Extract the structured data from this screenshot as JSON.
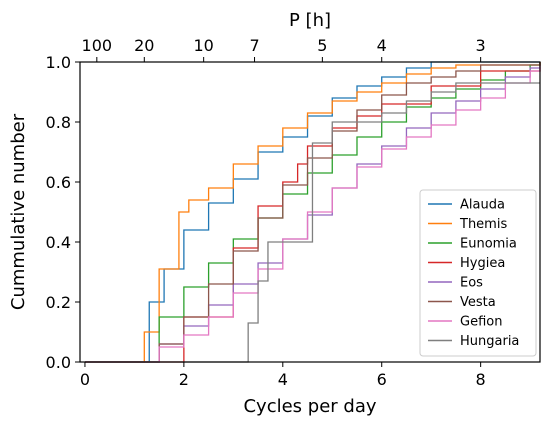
{
  "chart_data": {
    "type": "line",
    "step": true,
    "xlabel": "Cycles per day",
    "ylabel": "Cummulative number",
    "x2label": "P [h]",
    "xlim": [
      -0.1,
      9.2
    ],
    "ylim": [
      0.0,
      1.0
    ],
    "xticks": [
      0,
      2,
      4,
      6,
      8
    ],
    "xtick_labels": [
      "0",
      "2",
      "4",
      "6",
      "8"
    ],
    "yticks": [
      0.0,
      0.2,
      0.4,
      0.6,
      0.8,
      1.0
    ],
    "ytick_labels": [
      "0.0",
      "0.2",
      "0.4",
      "0.6",
      "0.8",
      "1.0"
    ],
    "top_axis": {
      "label": "P [h]",
      "ticks_hours": [
        100,
        20,
        10,
        7,
        5,
        4,
        3
      ],
      "tick_labels": [
        "100",
        "20",
        "10",
        "7",
        "5",
        "4",
        "3"
      ]
    },
    "grid": false,
    "legend": {
      "position": "lower-right",
      "entries": [
        "Alauda",
        "Themis",
        "Eunomia",
        "Hygiea",
        "Eos",
        "Vesta",
        "Gefion",
        "Hungaria"
      ]
    },
    "series": [
      {
        "name": "Alauda",
        "color": "#1f77b4",
        "x": [
          0.0,
          1.0,
          1.3,
          1.6,
          2.0,
          2.5,
          3.0,
          3.5,
          4.0,
          4.5,
          5.0,
          5.5,
          6.0,
          6.5,
          7.0,
          9.2
        ],
        "y": [
          0.0,
          0.0,
          0.2,
          0.31,
          0.44,
          0.53,
          0.61,
          0.7,
          0.75,
          0.82,
          0.88,
          0.92,
          0.95,
          0.98,
          1.0,
          1.0
        ]
      },
      {
        "name": "Themis",
        "color": "#ff7f0e",
        "x": [
          0.0,
          1.0,
          1.2,
          1.5,
          1.9,
          2.1,
          2.5,
          3.0,
          3.5,
          4.0,
          4.5,
          5.0,
          5.5,
          6.0,
          6.5,
          7.0,
          7.5,
          9.2
        ],
        "y": [
          0.0,
          0.0,
          0.1,
          0.31,
          0.5,
          0.54,
          0.58,
          0.66,
          0.72,
          0.78,
          0.83,
          0.87,
          0.9,
          0.93,
          0.96,
          0.98,
          0.99,
          1.0
        ]
      },
      {
        "name": "Eunomia",
        "color": "#2ca02c",
        "x": [
          0.0,
          1.0,
          1.5,
          2.0,
          2.5,
          3.0,
          3.5,
          4.0,
          4.5,
          5.0,
          5.5,
          6.0,
          6.5,
          7.0,
          7.5,
          8.0,
          8.5,
          9.0,
          9.2
        ],
        "y": [
          0.0,
          0.0,
          0.15,
          0.25,
          0.33,
          0.41,
          0.48,
          0.56,
          0.63,
          0.69,
          0.75,
          0.8,
          0.85,
          0.88,
          0.91,
          0.94,
          0.97,
          0.99,
          1.0
        ]
      },
      {
        "name": "Hygiea",
        "color": "#d62728",
        "x": [
          0.0,
          1.2,
          2.0,
          3.0,
          3.5,
          4.0,
          4.3,
          4.5,
          5.0,
          5.5,
          6.0,
          7.0,
          8.0,
          9.2
        ],
        "y": [
          0.0,
          0.0,
          0.15,
          0.38,
          0.52,
          0.6,
          0.66,
          0.72,
          0.78,
          0.82,
          0.86,
          0.92,
          0.97,
          1.0
        ]
      },
      {
        "name": "Eos",
        "color": "#9467bd",
        "x": [
          0.0,
          1.0,
          1.5,
          2.0,
          2.5,
          3.0,
          3.5,
          4.0,
          4.5,
          5.0,
          5.5,
          6.0,
          6.5,
          7.0,
          7.5,
          8.0,
          8.5,
          9.0,
          9.2
        ],
        "y": [
          0.0,
          0.0,
          0.06,
          0.12,
          0.19,
          0.26,
          0.33,
          0.41,
          0.49,
          0.58,
          0.66,
          0.72,
          0.78,
          0.83,
          0.87,
          0.91,
          0.95,
          0.98,
          0.99
        ]
      },
      {
        "name": "Vesta",
        "color": "#8c564b",
        "x": [
          0.0,
          1.0,
          1.5,
          2.0,
          2.5,
          3.0,
          3.5,
          4.0,
          4.5,
          5.0,
          5.5,
          6.0,
          6.5,
          7.0,
          7.5,
          8.0,
          9.2
        ],
        "y": [
          0.0,
          0.0,
          0.06,
          0.15,
          0.26,
          0.37,
          0.48,
          0.59,
          0.68,
          0.77,
          0.84,
          0.89,
          0.93,
          0.95,
          0.97,
          0.99,
          1.0
        ]
      },
      {
        "name": "Gefion",
        "color": "#e377c2",
        "x": [
          0.0,
          1.0,
          1.5,
          2.0,
          2.5,
          3.0,
          3.5,
          4.0,
          4.5,
          5.0,
          5.5,
          6.0,
          6.5,
          7.0,
          7.5,
          8.0,
          8.5,
          9.0,
          9.2
        ],
        "y": [
          0.0,
          0.0,
          0.05,
          0.09,
          0.15,
          0.23,
          0.31,
          0.41,
          0.5,
          0.58,
          0.65,
          0.71,
          0.75,
          0.79,
          0.84,
          0.88,
          0.93,
          0.97,
          0.98
        ]
      },
      {
        "name": "Hungaria",
        "color": "#7f7f7f",
        "x": [
          0.0,
          2.8,
          3.3,
          3.5,
          3.7,
          4.6,
          5.0,
          5.5,
          6.0,
          6.5,
          7.0,
          7.5,
          8.0,
          9.2
        ],
        "y": [
          0.0,
          0.0,
          0.13,
          0.27,
          0.4,
          0.73,
          0.8,
          0.8,
          0.83,
          0.87,
          0.9,
          0.93,
          0.93,
          0.93
        ]
      }
    ]
  }
}
